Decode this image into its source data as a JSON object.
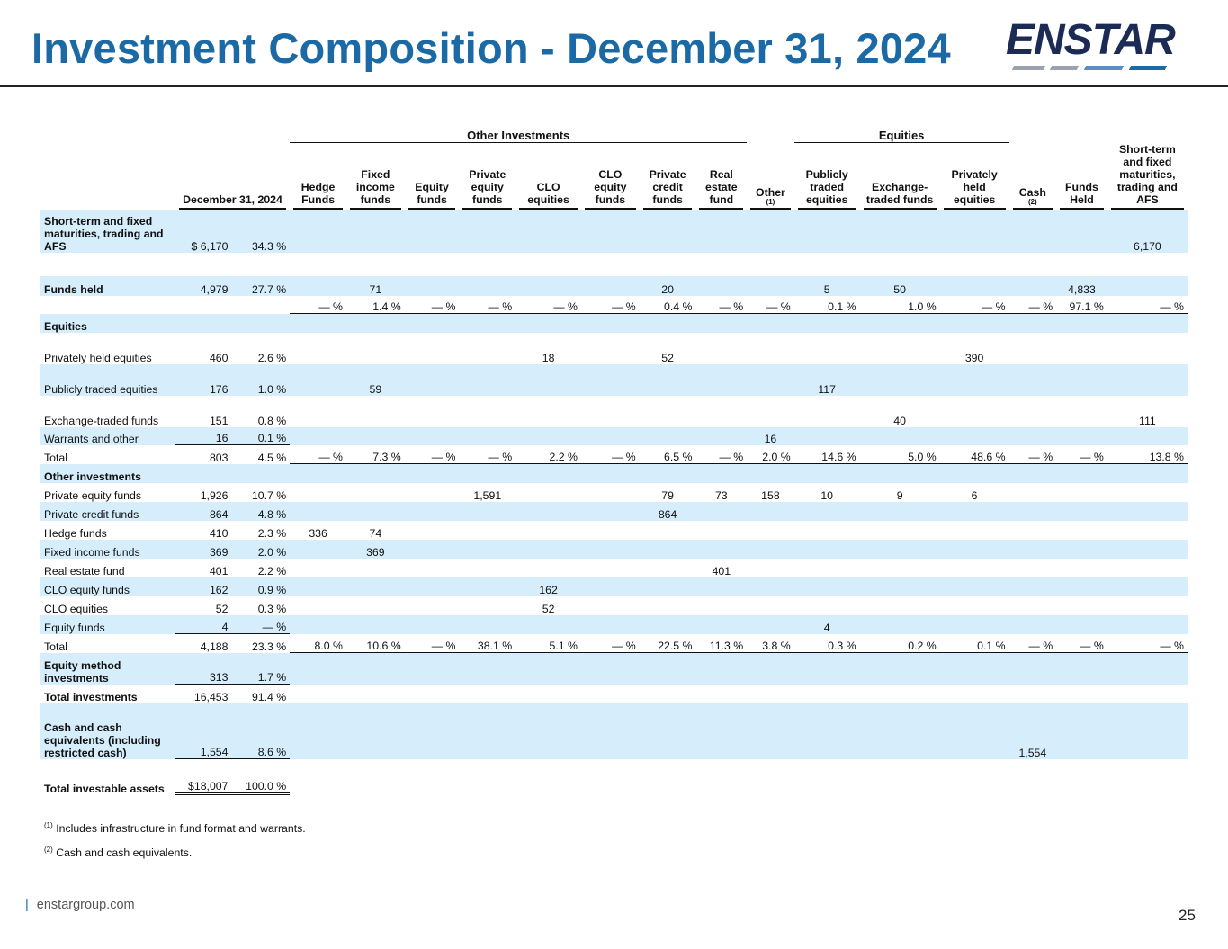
{
  "title": "Investment Composition - December 31, 2024",
  "logo": {
    "text": "ENSTAR",
    "colors": [
      "#1c2b55",
      "#1b6aa5",
      "#9aa3ad"
    ]
  },
  "table": {
    "group_headers": {
      "other_investments": "Other Investments",
      "equities": "Equities"
    },
    "col_headers": {
      "date": "December 31, 2024",
      "hedge": "Hedge Funds",
      "fixed_income": "Fixed income funds",
      "equity_funds": "Equity funds",
      "private_equity": "Private equity funds",
      "clo_equities": "CLO equities",
      "clo_equity_funds": "CLO equity funds",
      "private_credit": "Private credit funds",
      "real_estate": "Real estate fund",
      "other": "Other",
      "other_note": "(1)",
      "publicly_traded": "Publicly traded equities",
      "exchange_traded": "Exchange-traded funds",
      "privately_held": "Privately held equities",
      "cash": "Cash",
      "cash_note": "(2)",
      "funds_held": "Funds Held",
      "short_term": "Short-term and fixed maturities, trading and AFS"
    },
    "rows": [
      {
        "label": "Short-term and fixed maturities, trading and AFS",
        "bold": true,
        "amt": "$ 6,170",
        "pct": "34.3 %",
        "cells": [
          "",
          "",
          "",
          "",
          "",
          "",
          "",
          "",
          "",
          "",
          "",
          "",
          "",
          "",
          "6,170"
        ]
      },
      {
        "label": "",
        "amt": "",
        "pct": "",
        "cells": [
          "",
          "",
          "",
          "",
          "",
          "",
          "",
          "",
          "",
          "",
          "",
          "",
          "",
          "",
          ""
        ]
      },
      {
        "label": "Funds held",
        "bold": true,
        "amt": "4,979",
        "pct": "27.7 %",
        "cells": [
          "",
          "71",
          "",
          "",
          "",
          "",
          "20",
          "",
          "",
          "5",
          "50",
          "",
          "",
          "4,833",
          ""
        ]
      },
      {
        "label": "",
        "amt": "",
        "pct": "",
        "cells": [
          "— %",
          "1.4 %",
          "— %",
          "— %",
          "— %",
          "— %",
          "0.4 %",
          "— %",
          "— %",
          "0.1 %",
          "1.0 %",
          "— %",
          "— %",
          "97.1 %",
          "— %"
        ]
      },
      {
        "label": "Equities",
        "bold": true,
        "amt": "",
        "pct": "",
        "cells": [
          "",
          "",
          "",
          "",
          "",
          "",
          "",
          "",
          "",
          "",
          "",
          "",
          "",
          "",
          ""
        ]
      },
      {
        "label": "Privately held equities",
        "amt": "460",
        "pct": "2.6 %",
        "cells": [
          "",
          "",
          "",
          "",
          "18",
          "",
          "52",
          "",
          "",
          "",
          "",
          "390",
          "",
          "",
          ""
        ]
      },
      {
        "label": "Publicly traded equities",
        "amt": "176",
        "pct": "1.0 %",
        "cells": [
          "",
          "59",
          "",
          "",
          "",
          "",
          "",
          "",
          "",
          "117",
          "",
          "",
          "",
          "",
          ""
        ]
      },
      {
        "label": "Exchange-traded funds",
        "amt": "151",
        "pct": "0.8 %",
        "cells": [
          "",
          "",
          "",
          "",
          "",
          "",
          "",
          "",
          "",
          "",
          "40",
          "",
          "",
          "",
          "111"
        ]
      },
      {
        "label": "Warrants and other",
        "amt": "16",
        "pct": "0.1 %",
        "cells": [
          "",
          "",
          "",
          "",
          "",
          "",
          "",
          "",
          "16",
          "",
          "",
          "",
          "",
          "",
          ""
        ]
      },
      {
        "label": "Total",
        "amt": "803",
        "pct": "4.5 %",
        "cells": [
          "— %",
          "7.3 %",
          "— %",
          "— %",
          "2.2 %",
          "— %",
          "6.5 %",
          "— %",
          "2.0 %",
          "14.6 %",
          "5.0 %",
          "48.6 %",
          "— %",
          "— %",
          "13.8 %"
        ]
      },
      {
        "label": "Other investments",
        "bold": true,
        "amt": "",
        "pct": "",
        "cells": [
          "",
          "",
          "",
          "",
          "",
          "",
          "",
          "",
          "",
          "",
          "",
          "",
          "",
          "",
          ""
        ]
      },
      {
        "label": "Private equity funds",
        "amt": "1,926",
        "pct": "10.7 %",
        "cells": [
          "",
          "",
          "",
          "1,591",
          "",
          "",
          "79",
          "73",
          "158",
          "10",
          "9",
          "6",
          "",
          "",
          ""
        ]
      },
      {
        "label": "Private credit funds",
        "amt": "864",
        "pct": "4.8 %",
        "cells": [
          "",
          "",
          "",
          "",
          "",
          "",
          "864",
          "",
          "",
          "",
          "",
          "",
          "",
          "",
          ""
        ]
      },
      {
        "label": "Hedge funds",
        "amt": "410",
        "pct": "2.3 %",
        "cells": [
          "336",
          "74",
          "",
          "",
          "",
          "",
          "",
          "",
          "",
          "",
          "",
          "",
          "",
          "",
          ""
        ]
      },
      {
        "label": "Fixed income funds",
        "amt": "369",
        "pct": "2.0 %",
        "cells": [
          "",
          "369",
          "",
          "",
          "",
          "",
          "",
          "",
          "",
          "",
          "",
          "",
          "",
          "",
          ""
        ]
      },
      {
        "label": "Real estate fund",
        "amt": "401",
        "pct": "2.2 %",
        "cells": [
          "",
          "",
          "",
          "",
          "",
          "",
          "",
          "401",
          "",
          "",
          "",
          "",
          "",
          "",
          ""
        ]
      },
      {
        "label": "CLO equity funds",
        "amt": "162",
        "pct": "0.9 %",
        "cells": [
          "",
          "",
          "",
          "",
          "162",
          "",
          "",
          "",
          "",
          "",
          "",
          "",
          "",
          "",
          ""
        ]
      },
      {
        "label": "CLO equities",
        "amt": "52",
        "pct": "0.3 %",
        "cells": [
          "",
          "",
          "",
          "",
          "52",
          "",
          "",
          "",
          "",
          "",
          "",
          "",
          "",
          "",
          ""
        ]
      },
      {
        "label": "Equity funds",
        "amt": "4",
        "pct": "— %",
        "cells": [
          "",
          "",
          "",
          "",
          "",
          "",
          "",
          "",
          "",
          "4",
          "",
          "",
          "",
          "",
          ""
        ]
      },
      {
        "label": "Total",
        "amt": "4,188",
        "pct": "23.3 %",
        "cells": [
          "8.0 %",
          "10.6 %",
          "— %",
          "38.1 %",
          "5.1 %",
          "— %",
          "22.5 %",
          "11.3 %",
          "3.8 %",
          "0.3 %",
          "0.2 %",
          "0.1 %",
          "— %",
          "— %",
          "— %"
        ]
      },
      {
        "label": "Equity method investments",
        "bold": true,
        "amt": "313",
        "pct": "1.7 %",
        "cells": [
          "",
          "",
          "",
          "",
          "",
          "",
          "",
          "",
          "",
          "",
          "",
          "",
          "",
          "",
          ""
        ]
      },
      {
        "label": "Total investments",
        "bold": true,
        "amt": "16,453",
        "pct": "91.4 %",
        "cells": [
          "",
          "",
          "",
          "",
          "",
          "",
          "",
          "",
          "",
          "",
          "",
          "",
          "",
          "",
          ""
        ]
      },
      {
        "label": "Cash and cash equivalents (including restricted cash)",
        "bold": true,
        "amt": "1,554",
        "pct": "8.6 %",
        "cells": [
          "",
          "",
          "",
          "",
          "",
          "",
          "",
          "",
          "",
          "",
          "",
          "",
          "1,554",
          "",
          ""
        ]
      },
      {
        "label": "Total investable assets",
        "bold": true,
        "amt": "$18,007",
        "pct": "100.0 %",
        "cells": [
          "",
          "",
          "",
          "",
          "",
          "",
          "",
          "",
          "",
          "",
          "",
          "",
          "",
          "",
          ""
        ]
      }
    ]
  },
  "footnotes": [
    {
      "mark": "(1)",
      "text": "Includes infrastructure in fund format and warrants."
    },
    {
      "mark": "(2)",
      "text": "Cash and cash equivalents."
    }
  ],
  "footer": {
    "website": "enstargroup.com",
    "page_number": "25"
  }
}
